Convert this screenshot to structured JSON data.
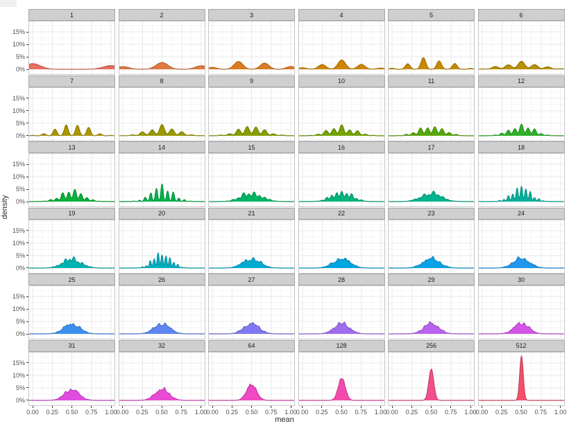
{
  "page": {
    "background": "#ffffff"
  },
  "axes": {
    "x_title": "mean",
    "y_title": "density",
    "x_ticks": [
      "0.00",
      "0.25",
      "0.50",
      "0.75",
      "1.00"
    ],
    "x_tick_values": [
      0,
      0.25,
      0.5,
      0.75,
      1
    ],
    "y_ticks": [
      "0%",
      "5%",
      "10%",
      "15%"
    ],
    "y_tick_values": [
      0,
      5,
      10,
      15
    ]
  },
  "style": {
    "strip_bg": "#cfcfcf",
    "strip_border": "#a6a6a6",
    "strip_text": "#1a1a1a",
    "panel_bg": "#ffffff",
    "panel_border": "#c6c6c6",
    "grid_major": "#e8e8e8",
    "grid_minor": "#f4f4f4",
    "tick_label_color": "#4d4d4d",
    "axis_title_color": "#2b2b2b"
  },
  "chart_data": {
    "type": "area",
    "subtype": "faceted-density",
    "title": "",
    "xlabel": "mean",
    "ylabel": "density",
    "x_range": [
      0,
      1
    ],
    "y_range_pct": [
      0,
      19
    ],
    "grid": true,
    "layout": {
      "columns": 6,
      "rows": 6
    },
    "description": "36 facets labelled by sample size n. Each panel shows the kernel-smoothed density of sample means of n Bernoulli(0.5) draws: bumps at k/n weighted by binomial(n,k)/2^n, converging to a narrow normal at 0.5 as n grows.",
    "facets": [
      {
        "label": "1",
        "n": 1,
        "color": "#E76E60",
        "bandwidth": 0.1,
        "peak_pct": 2.0
      },
      {
        "label": "2",
        "n": 2,
        "color": "#E07840",
        "bandwidth": 0.075,
        "peak_pct": 2.7
      },
      {
        "label": "3",
        "n": 3,
        "color": "#DB7C20",
        "bandwidth": 0.055,
        "peak_pct": 2.7
      },
      {
        "label": "4",
        "n": 4,
        "color": "#CF8500",
        "bandwidth": 0.048,
        "peak_pct": 3.1
      },
      {
        "label": "5",
        "n": 5,
        "color": "#C68A00",
        "bandwidth": 0.03,
        "peak_pct": 4.2
      },
      {
        "label": "6",
        "n": 6,
        "color": "#B98F00",
        "bandwidth": 0.042,
        "peak_pct": 3.0
      },
      {
        "label": "7",
        "n": 7,
        "color": "#AB9500",
        "bandwidth": 0.024,
        "peak_pct": 4.5
      },
      {
        "label": "8",
        "n": 8,
        "color": "#9A9A00",
        "bandwidth": 0.03,
        "peak_pct": 3.6
      },
      {
        "label": "9",
        "n": 9,
        "color": "#889E00",
        "bandwidth": 0.028,
        "peak_pct": 3.5
      },
      {
        "label": "10",
        "n": 10,
        "color": "#74A400",
        "bandwidth": 0.026,
        "peak_pct": 3.8
      },
      {
        "label": "11",
        "n": 11,
        "color": "#55A90A",
        "bandwidth": 0.024,
        "peak_pct": 3.7
      },
      {
        "label": "12",
        "n": 12,
        "color": "#2FB02A",
        "bandwidth": 0.022,
        "peak_pct": 4.1
      },
      {
        "label": "13",
        "n": 13,
        "color": "#0BB13A",
        "bandwidth": 0.02,
        "peak_pct": 4.2
      },
      {
        "label": "14",
        "n": 14,
        "color": "#00B24C",
        "bandwidth": 0.014,
        "peak_pct": 6.0
      },
      {
        "label": "15",
        "n": 15,
        "color": "#00B464",
        "bandwidth": 0.022,
        "peak_pct": 3.6
      },
      {
        "label": "16",
        "n": 16,
        "color": "#00B57C",
        "bandwidth": 0.019,
        "peak_pct": 4.1
      },
      {
        "label": "17",
        "n": 17,
        "color": "#00B48E",
        "bandwidth": 0.022,
        "peak_pct": 3.4
      },
      {
        "label": "18",
        "n": 18,
        "color": "#00B3A0",
        "bandwidth": 0.013,
        "peak_pct": 5.7
      },
      {
        "label": "19",
        "n": 19,
        "color": "#00B2B2",
        "bandwidth": 0.019,
        "peak_pct": 3.7
      },
      {
        "label": "20",
        "n": 20,
        "color": "#00B0C2",
        "bandwidth": 0.012,
        "peak_pct": 5.9
      },
      {
        "label": "21",
        "n": 21,
        "color": "#00ABD2",
        "bandwidth": 0.019,
        "peak_pct": 3.8
      },
      {
        "label": "22",
        "n": 22,
        "color": "#00A5DF",
        "bandwidth": 0.019,
        "peak_pct": 3.9
      },
      {
        "label": "23",
        "n": 23,
        "color": "#0AA2E6",
        "bandwidth": 0.018,
        "peak_pct": 4.0
      },
      {
        "label": "24",
        "n": 24,
        "color": "#1F97EF",
        "bandwidth": 0.018,
        "peak_pct": 4.0
      },
      {
        "label": "25",
        "n": 25,
        "color": "#3B8FEF",
        "bandwidth": 0.017,
        "peak_pct": 4.1
      },
      {
        "label": "26",
        "n": 26,
        "color": "#5E85F2",
        "bandwidth": 0.017,
        "peak_pct": 4.1
      },
      {
        "label": "27",
        "n": 27,
        "color": "#8078F2",
        "bandwidth": 0.016,
        "peak_pct": 4.2
      },
      {
        "label": "28",
        "n": 28,
        "color": "#A06CF0",
        "bandwidth": 0.016,
        "peak_pct": 4.2
      },
      {
        "label": "29",
        "n": 29,
        "color": "#BA62EE",
        "bandwidth": 0.015,
        "peak_pct": 4.4
      },
      {
        "label": "30",
        "n": 30,
        "color": "#D354E6",
        "bandwidth": 0.015,
        "peak_pct": 4.4
      },
      {
        "label": "31",
        "n": 31,
        "color": "#DF4CDF",
        "bandwidth": 0.015,
        "peak_pct": 4.5
      },
      {
        "label": "32",
        "n": 32,
        "color": "#E94AD4",
        "bandwidth": 0.014,
        "peak_pct": 4.6
      },
      {
        "label": "64",
        "n": 64,
        "color": "#F148C3",
        "bandwidth": 0.01,
        "peak_pct": 6.3
      },
      {
        "label": "128",
        "n": 128,
        "color": "#F44AAE",
        "bandwidth": 0.008,
        "peak_pct": 8.9
      },
      {
        "label": "256",
        "n": 256,
        "color": "#F44E8D",
        "bandwidth": 0.006,
        "peak_pct": 12.5
      },
      {
        "label": "512",
        "n": 512,
        "color": "#F4506C",
        "bandwidth": 0.004,
        "peak_pct": 17.8
      }
    ]
  }
}
